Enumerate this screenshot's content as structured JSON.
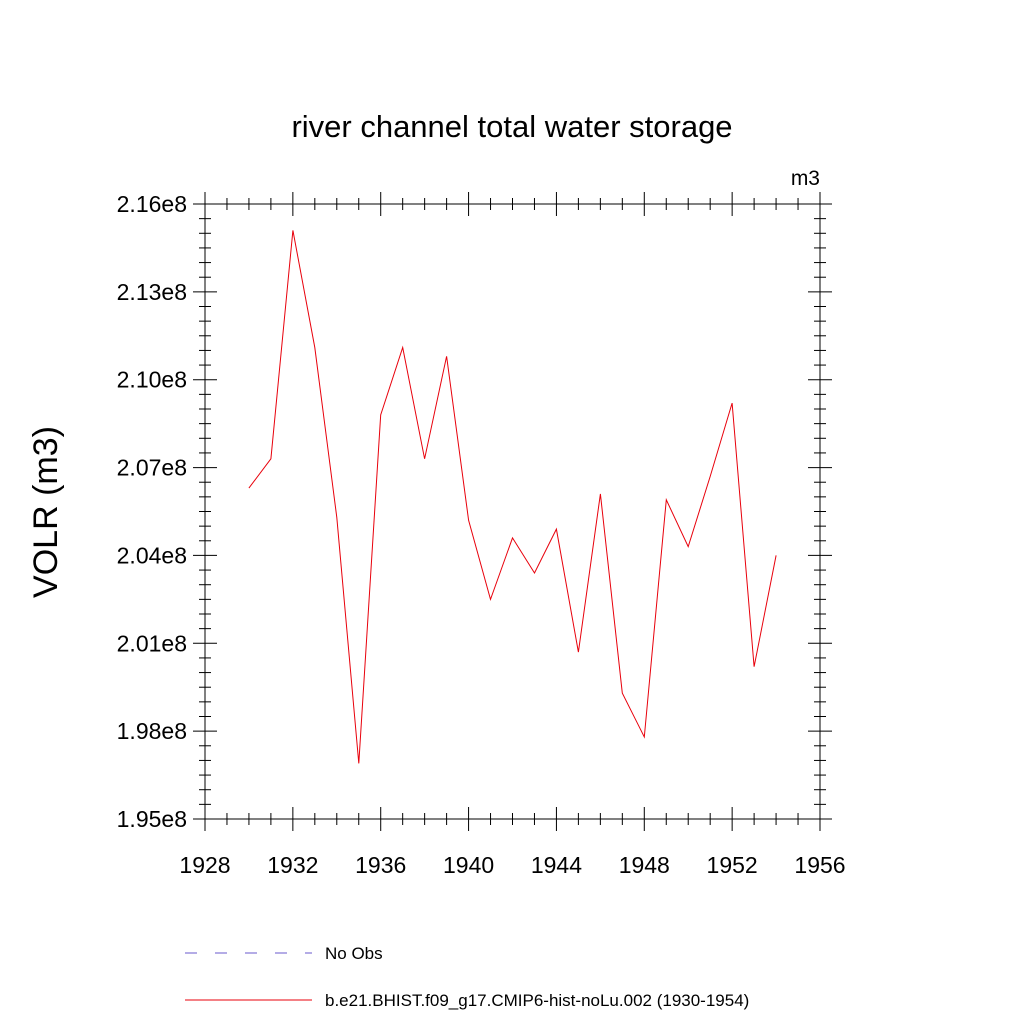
{
  "chart_data": {
    "type": "line",
    "title": "river channel total water storage",
    "units": "m3",
    "ylabel": "VOLR  (m3)",
    "xlabel": "",
    "xlim": [
      1928,
      1956
    ],
    "ylim": [
      195000000.0,
      216000000.0
    ],
    "xticks": [
      1928,
      1932,
      1936,
      1940,
      1944,
      1948,
      1952,
      1956
    ],
    "yticks": [
      195000000.0,
      198000000.0,
      201000000.0,
      204000000.0,
      207000000.0,
      210000000.0,
      213000000.0,
      216000000.0
    ],
    "ytick_labels": [
      "1.95e8",
      "1.98e8",
      "2.01e8",
      "2.04e8",
      "2.07e8",
      "2.10e8",
      "2.13e8",
      "2.16e8"
    ],
    "xtick_labels": [
      "1928",
      "1932",
      "1936",
      "1940",
      "1944",
      "1948",
      "1952",
      "1956"
    ],
    "grid": false,
    "legend_placement": "bottom",
    "series": [
      {
        "name": "No Obs",
        "color": "#6a5acd",
        "dash": "dashed",
        "x": [],
        "y": []
      },
      {
        "name": "b.e21.BHIST.f09_g17.CMIP6-hist-noLu.002 (1930-1954)",
        "color": "#e8000b",
        "dash": "solid",
        "x": [
          1930,
          1931,
          1932,
          1933,
          1934,
          1935,
          1936,
          1937,
          1938,
          1939,
          1940,
          1941,
          1942,
          1943,
          1944,
          1945,
          1946,
          1947,
          1948,
          1949,
          1950,
          1951,
          1952,
          1953,
          1954
        ],
        "y": [
          206300000.0,
          207300000.0,
          215100000.0,
          211100000.0,
          205300000.0,
          196900000.0,
          208800000.0,
          211100000.0,
          207300000.0,
          210800000.0,
          205200000.0,
          202500000.0,
          204600000.0,
          203400000.0,
          204900000.0,
          200700000.0,
          206100000.0,
          199300000.0,
          197800000.0,
          205900000.0,
          204300000.0,
          206700000.0,
          209200000.0,
          200200000.0,
          204000000.0
        ]
      }
    ]
  }
}
